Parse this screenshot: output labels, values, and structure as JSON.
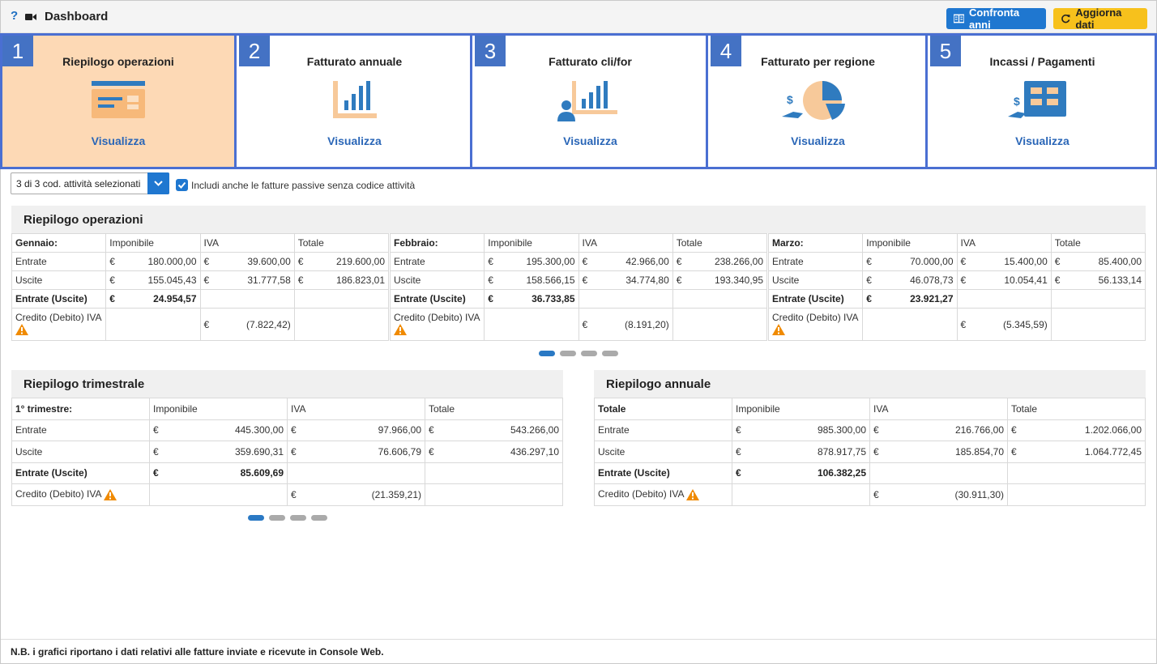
{
  "header": {
    "help_glyph": "?",
    "title": "Dashboard",
    "compare_label": "Confronta anni",
    "refresh_label": "Aggiorna dati"
  },
  "tiles": [
    {
      "num": "1",
      "title": "Riepilogo operazioni",
      "link": "Visualizza",
      "icon": "card-icon"
    },
    {
      "num": "2",
      "title": "Fatturato annuale",
      "link": "Visualizza",
      "icon": "bar-chart-icon"
    },
    {
      "num": "3",
      "title": "Fatturato cli/for",
      "link": "Visualizza",
      "icon": "user-chart-icon"
    },
    {
      "num": "4",
      "title": "Fatturato per regione",
      "link": "Visualizza",
      "icon": "pie-chart-icon"
    },
    {
      "num": "5",
      "title": "Incassi / Pagamenti",
      "link": "Visualizza",
      "icon": "grid-money-icon"
    }
  ],
  "filter": {
    "select_value": "3 di 3 cod. attività selezionati",
    "checkbox_label": "Includi anche le fatture passive senza codice attività"
  },
  "operations": {
    "title": "Riepilogo operazioni",
    "months": [
      {
        "name": "Gennaio:",
        "entrate": [
          "180.000,00",
          "39.600,00",
          "219.600,00"
        ],
        "uscite": [
          "155.045,43",
          "31.777,58",
          "186.823,01"
        ],
        "saldo": "24.954,57",
        "credito": "(7.822,42)"
      },
      {
        "name": "Febbraio:",
        "entrate": [
          "195.300,00",
          "42.966,00",
          "238.266,00"
        ],
        "uscite": [
          "158.566,15",
          "34.774,80",
          "193.340,95"
        ],
        "saldo": "36.733,85",
        "credito": "(8.191,20)"
      },
      {
        "name": "Marzo:",
        "entrate": [
          "70.000,00",
          "15.400,00",
          "85.400,00"
        ],
        "uscite": [
          "46.078,73",
          "10.054,41",
          "56.133,14"
        ],
        "saldo": "23.921,27",
        "credito": "(5.345,59)"
      }
    ]
  },
  "labels": {
    "imponibile": "Imponibile",
    "iva": "IVA",
    "totale": "Totale",
    "entrate": "Entrate",
    "uscite": "Uscite",
    "saldo": "Entrate (Uscite)",
    "credito": "Credito (Debito) IVA",
    "currency": "€"
  },
  "quarterly": {
    "title": "Riepilogo trimestrale",
    "period": "1° trimestre:",
    "entrate": [
      "445.300,00",
      "97.966,00",
      "543.266,00"
    ],
    "uscite": [
      "359.690,31",
      "76.606,79",
      "436.297,10"
    ],
    "saldo": "85.609,69",
    "credito": "(21.359,21)"
  },
  "annual": {
    "title": "Riepilogo annuale",
    "period": "Totale",
    "entrate": [
      "985.300,00",
      "216.766,00",
      "1.202.066,00"
    ],
    "uscite": [
      "878.917,75",
      "185.854,70",
      "1.064.772,45"
    ],
    "saldo": "106.382,25",
    "credito": "(30.911,30)"
  },
  "footer": {
    "note": "N.B. i grafici riportano i dati relativi alle fatture inviate e ricevute in Console Web."
  },
  "colors": {
    "accent_blue": "#1f77d0",
    "tile_border": "#4a6fd2",
    "tile_active": "#fdd9b5",
    "warning": "#f08a00",
    "button_yellow": "#f7c11c"
  }
}
